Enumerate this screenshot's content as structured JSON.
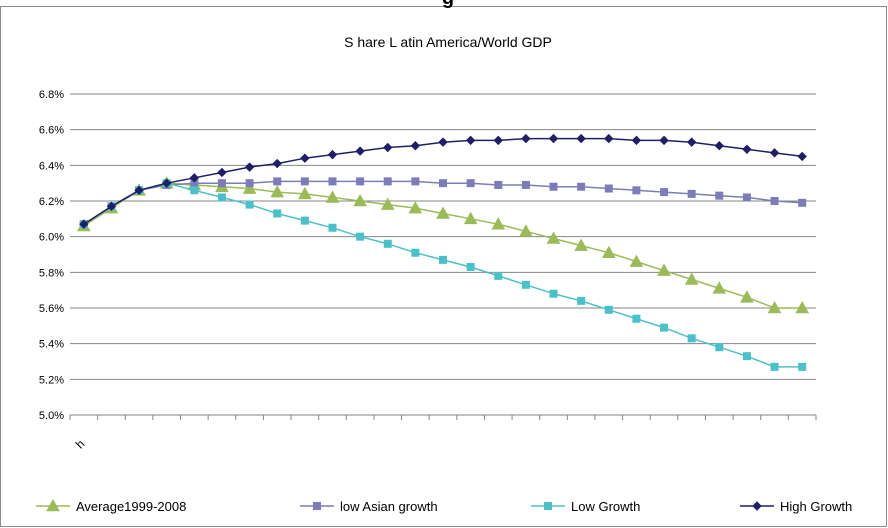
{
  "chart_data": {
    "type": "line",
    "title": "S hare L atin America/World GDP",
    "clipped_heading": "g",
    "xlabel": "",
    "ylabel": "",
    "x_tick_label": "h",
    "ylim": [
      0.05,
      0.068
    ],
    "y_ticks": [
      0.05,
      0.052,
      0.054,
      0.056,
      0.058,
      0.06,
      0.062,
      0.064,
      0.066,
      0.068
    ],
    "y_tick_labels": [
      "5.0%",
      "5.2%",
      "5.4%",
      "5.6%",
      "5.8%",
      "6.0%",
      "6.2%",
      "6.4%",
      "6.6%",
      "6.8%"
    ],
    "grid": true,
    "legend_position": "bottom",
    "x": [
      1,
      2,
      3,
      4,
      5,
      6,
      7,
      8,
      9,
      10,
      11,
      12,
      13,
      14,
      15,
      16,
      17,
      18,
      19,
      20,
      21,
      22,
      23,
      24,
      25,
      26,
      27
    ],
    "series": [
      {
        "name": "Average1999-2008",
        "color": "#9BBB59",
        "marker": "triangle",
        "values": [
          0.0606,
          0.0616,
          0.0626,
          0.063,
          0.0629,
          0.0628,
          0.0627,
          0.0625,
          0.0624,
          0.0622,
          0.062,
          0.0618,
          0.0616,
          0.0613,
          0.061,
          0.0607,
          0.0603,
          0.0599,
          0.0595,
          0.0591,
          0.0586,
          0.0581,
          0.0576,
          0.0571,
          0.0566,
          0.056,
          0.056
        ]
      },
      {
        "name": "low Asian growth",
        "color": "#7C7CB8",
        "marker": "square",
        "values": [
          0.0607,
          0.0617,
          0.0626,
          0.0629,
          0.063,
          0.063,
          0.063,
          0.0631,
          0.0631,
          0.0631,
          0.0631,
          0.0631,
          0.0631,
          0.063,
          0.063,
          0.0629,
          0.0629,
          0.0628,
          0.0628,
          0.0627,
          0.0626,
          0.0625,
          0.0624,
          0.0623,
          0.0622,
          0.062,
          0.0619
        ]
      },
      {
        "name": "Low Growth",
        "color": "#4BC0C8",
        "marker": "square",
        "values": [
          0.0607,
          0.0617,
          0.0626,
          0.063,
          0.0626,
          0.0622,
          0.0618,
          0.0613,
          0.0609,
          0.0605,
          0.06,
          0.0596,
          0.0591,
          0.0587,
          0.0583,
          0.0578,
          0.0573,
          0.0568,
          0.0564,
          0.0559,
          0.0554,
          0.0549,
          0.0543,
          0.0538,
          0.0533,
          0.0527,
          0.0527
        ]
      },
      {
        "name": "High Growth",
        "color": "#1F1F66",
        "marker": "diamond",
        "values": [
          0.0607,
          0.0617,
          0.0626,
          0.063,
          0.0633,
          0.0636,
          0.0639,
          0.0641,
          0.0644,
          0.0646,
          0.0648,
          0.065,
          0.0651,
          0.0653,
          0.0654,
          0.0654,
          0.0655,
          0.0655,
          0.0655,
          0.0655,
          0.0654,
          0.0654,
          0.0653,
          0.0651,
          0.0649,
          0.0647,
          0.0645
        ]
      }
    ]
  }
}
